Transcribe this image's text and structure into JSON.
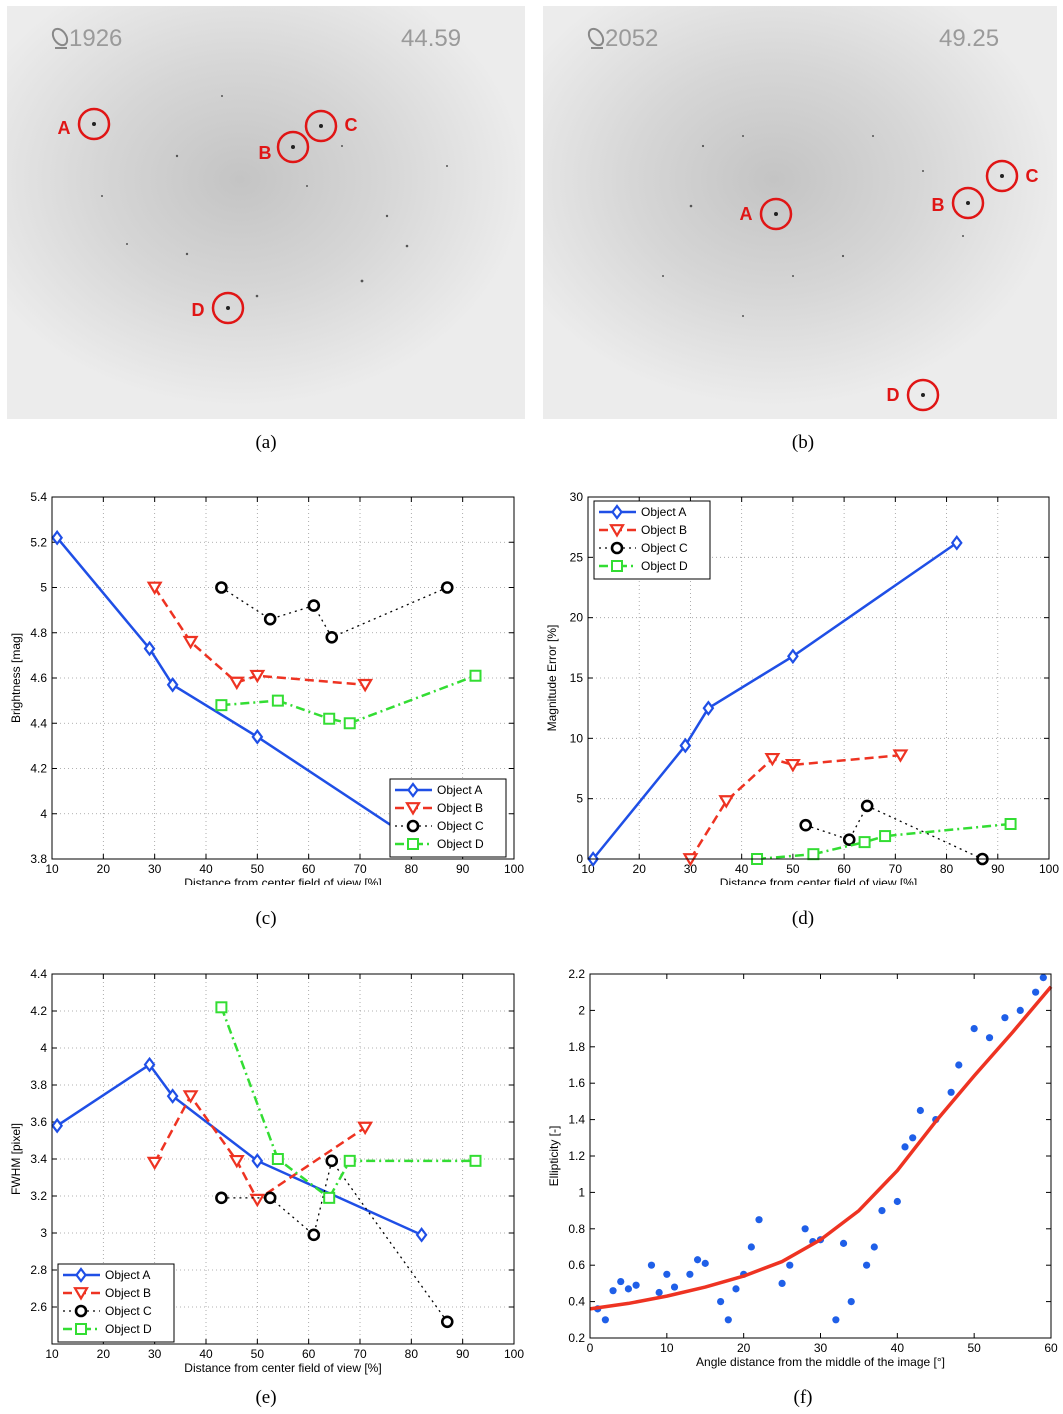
{
  "images": [
    {
      "id": "a",
      "caption": "(a)",
      "frame_label": "1926",
      "time_label": "44.59",
      "objects": [
        {
          "label": "A"
        },
        {
          "label": "B"
        },
        {
          "label": "C"
        },
        {
          "label": "D"
        }
      ]
    },
    {
      "id": "b",
      "caption": "(b)",
      "frame_label": "2052",
      "time_label": "49.25",
      "objects": [
        {
          "label": "A"
        },
        {
          "label": "B"
        },
        {
          "label": "C"
        },
        {
          "label": "D"
        }
      ]
    }
  ],
  "colors": {
    "object_a": "#1f4fe6",
    "object_b": "#ee3322",
    "object_c": "#000000",
    "object_d": "#33dd33",
    "fit": "#ee3322",
    "points": "#1f5fe8",
    "circle": "#e01515"
  },
  "chart_data": [
    {
      "id": "c",
      "caption": "(c)",
      "type": "line",
      "xlabel": "Distance from center field of view [%]",
      "ylabel": "Brightness [mag]",
      "xlim": [
        10,
        100
      ],
      "ylim": [
        3.8,
        5.4
      ],
      "xticks": [
        10,
        20,
        30,
        40,
        50,
        60,
        70,
        80,
        90,
        100
      ],
      "yticks": [
        3.8,
        4,
        4.2,
        4.4,
        4.6,
        4.8,
        5,
        5.2,
        5.4
      ],
      "ytick_labels": [
        "3.8",
        "4",
        "4.2",
        "4.4",
        "4.6",
        "4.8",
        "5",
        "5.2",
        "5.4"
      ],
      "grid": true,
      "legend_position": "bottom-right",
      "series": [
        {
          "name": "Object A",
          "marker": "diamond",
          "dash": "solid",
          "x": [
            11,
            29,
            33.5,
            50,
            82
          ],
          "y": [
            5.22,
            4.73,
            4.57,
            4.34,
            3.86
          ]
        },
        {
          "name": "Object B",
          "marker": "triangle-down",
          "dash": "dashed",
          "x": [
            30,
            37,
            46,
            50,
            71
          ],
          "y": [
            5.0,
            4.76,
            4.58,
            4.61,
            4.57
          ]
        },
        {
          "name": "Object C",
          "marker": "circle",
          "dash": "dotted",
          "x": [
            43,
            52.5,
            61,
            64.5,
            87
          ],
          "y": [
            5.0,
            4.86,
            4.92,
            4.78,
            5.0
          ]
        },
        {
          "name": "Object D",
          "marker": "square",
          "dash": "dashdot",
          "x": [
            43,
            54,
            64,
            68,
            92.5
          ],
          "y": [
            4.48,
            4.5,
            4.42,
            4.4,
            4.61
          ]
        }
      ]
    },
    {
      "id": "d",
      "caption": "(d)",
      "type": "line",
      "xlabel": "Distance from center field of view [%]",
      "ylabel": "Magnitude Error [%]",
      "xlim": [
        10,
        100
      ],
      "ylim": [
        0,
        30
      ],
      "xticks": [
        10,
        20,
        30,
        40,
        50,
        60,
        70,
        80,
        90,
        100
      ],
      "yticks": [
        0,
        5,
        10,
        15,
        20,
        25,
        30
      ],
      "ytick_labels": [
        "0",
        "5",
        "10",
        "15",
        "20",
        "25",
        "30"
      ],
      "grid": true,
      "legend_position": "top-left",
      "series": [
        {
          "name": "Object A",
          "marker": "diamond",
          "dash": "solid",
          "x": [
            11,
            29,
            33.5,
            50,
            82
          ],
          "y": [
            0,
            9.4,
            12.5,
            16.8,
            26.2
          ]
        },
        {
          "name": "Object B",
          "marker": "triangle-down",
          "dash": "dashed",
          "x": [
            30,
            37,
            46,
            50,
            71
          ],
          "y": [
            0,
            4.8,
            8.3,
            7.8,
            8.6
          ]
        },
        {
          "name": "Object C",
          "marker": "circle",
          "dash": "dotted",
          "x": [
            52.5,
            61,
            64.5,
            87
          ],
          "y": [
            2.8,
            1.6,
            4.4,
            0
          ]
        },
        {
          "name": "Object D",
          "marker": "square",
          "dash": "dashdot",
          "x": [
            43,
            54,
            64,
            68,
            92.5
          ],
          "y": [
            0,
            0.4,
            1.4,
            1.9,
            2.9
          ]
        }
      ]
    },
    {
      "id": "e",
      "caption": "(e)",
      "type": "line",
      "xlabel": "Distance from center field of view [%]",
      "ylabel": "FWHM [pixel]",
      "xlim": [
        10,
        100
      ],
      "ylim": [
        2.4,
        4.4
      ],
      "xticks": [
        10,
        20,
        30,
        40,
        50,
        60,
        70,
        80,
        90,
        100
      ],
      "yticks": [
        2.6,
        2.8,
        3,
        3.2,
        3.4,
        3.6,
        3.8,
        4,
        4.2,
        4.4
      ],
      "ytick_labels": [
        "2.6",
        "2.8",
        "3",
        "3.2",
        "3.4",
        "3.6",
        "3.8",
        "4",
        "4.2",
        "4.4"
      ],
      "grid": true,
      "legend_position": "bottom-left",
      "series": [
        {
          "name": "Object A",
          "marker": "diamond",
          "dash": "solid",
          "x": [
            11,
            29,
            33.5,
            50,
            82
          ],
          "y": [
            3.58,
            3.91,
            3.74,
            3.39,
            2.99
          ]
        },
        {
          "name": "Object B",
          "marker": "triangle-down",
          "dash": "dashed",
          "x": [
            30,
            37,
            46,
            50,
            71
          ],
          "y": [
            3.38,
            3.74,
            3.39,
            3.18,
            3.57
          ]
        },
        {
          "name": "Object C",
          "marker": "circle",
          "dash": "dotted",
          "x": [
            43,
            52.5,
            61,
            64.5,
            87
          ],
          "y": [
            3.19,
            3.19,
            2.99,
            3.39,
            2.52
          ]
        },
        {
          "name": "Object D",
          "marker": "square",
          "dash": "dashdot",
          "x": [
            43,
            54,
            64,
            68,
            92.5
          ],
          "y": [
            4.22,
            3.4,
            3.19,
            3.39,
            3.39
          ]
        }
      ]
    },
    {
      "id": "f",
      "caption": "(f)",
      "type": "scatter",
      "xlabel": "Angle distance from the middle of the image [°]",
      "ylabel": "Ellipticity [-]",
      "xlim": [
        0,
        60
      ],
      "ylim": [
        0.2,
        2.2
      ],
      "xticks": [
        0,
        10,
        20,
        30,
        40,
        50,
        60
      ],
      "yticks": [
        0.2,
        0.4,
        0.6,
        0.8,
        1,
        1.2,
        1.4,
        1.6,
        1.8,
        2,
        2.2
      ],
      "ytick_labels": [
        "0.2",
        "0.4",
        "0.6",
        "0.8",
        "1",
        "1.2",
        "1.4",
        "1.6",
        "1.8",
        "2",
        "2.2"
      ],
      "grid": false,
      "points": {
        "x": [
          1,
          2,
          3,
          4,
          5,
          6,
          8,
          9,
          10,
          11,
          13,
          14,
          15,
          17,
          18,
          19,
          20,
          21,
          22,
          25,
          26,
          28,
          29,
          30,
          32,
          33,
          34,
          36,
          37,
          38,
          40,
          41,
          42,
          43,
          45,
          47,
          48,
          50,
          52,
          54,
          56,
          58,
          59
        ],
        "y": [
          0.36,
          0.3,
          0.46,
          0.51,
          0.47,
          0.49,
          0.6,
          0.45,
          0.55,
          0.48,
          0.55,
          0.63,
          0.61,
          0.4,
          0.3,
          0.47,
          0.55,
          0.7,
          0.85,
          0.5,
          0.6,
          0.8,
          0.73,
          0.74,
          0.3,
          0.72,
          0.4,
          0.6,
          0.7,
          0.9,
          0.95,
          1.25,
          1.3,
          1.45,
          1.4,
          1.55,
          1.7,
          1.9,
          1.85,
          1.96,
          2.0,
          2.1,
          2.18
        ]
      },
      "fit": {
        "x": [
          0,
          5,
          10,
          15,
          20,
          25,
          30,
          35,
          40,
          45,
          50,
          55,
          60
        ],
        "y": [
          0.36,
          0.39,
          0.43,
          0.48,
          0.54,
          0.62,
          0.74,
          0.9,
          1.12,
          1.39,
          1.64,
          1.88,
          2.13
        ]
      }
    }
  ]
}
